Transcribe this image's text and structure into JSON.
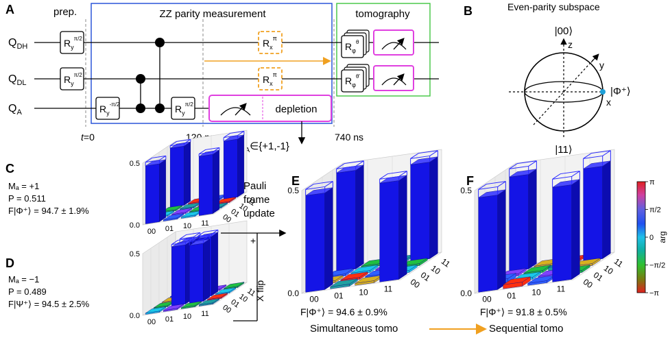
{
  "panel_a": {
    "label": "A",
    "prep": "prep.",
    "zz_title": "ZZ parity measurement",
    "tomo_title": "tomography",
    "qubits": {
      "dh": "Q",
      "dh_sub": "DH",
      "dl": "Q",
      "dl_sub": "DL",
      "a": "Q",
      "a_sub": "A"
    },
    "gates": {
      "ry": "R",
      "ry_sub": "y",
      "pi2": "π/2",
      "mpi2": "-π/2",
      "rx": "R",
      "rx_sub": "x",
      "pi": "π",
      "rphi": "R",
      "rphi_sub": "φ",
      "theta": "θ",
      "thetap": "θ'"
    },
    "depletion": "depletion",
    "t0": "t",
    "t0_rest": "=0",
    "t120": "120 ns",
    "t740": "740 ns",
    "ma": "M",
    "ma_sub": "A",
    "ma_rest": "∈{+1,-1}"
  },
  "panel_b": {
    "label": "B",
    "title": "Even-parity subspace",
    "top": "|00⟩",
    "bottom": "|11⟩",
    "right": "|Φ⁺⟩",
    "z": "z",
    "y": "y",
    "x": "x"
  },
  "panel_c": {
    "label": "C",
    "ma_line": "Mₐ = +1",
    "p_line": "P = 0.511",
    "f_line": "F|Φ⁺⟩ = 94.7 ± 1.9%",
    "ticks_z": [
      "0.5",
      "0.0"
    ],
    "ticks_x": [
      "00",
      "01",
      "10",
      "11"
    ],
    "ticks_y": [
      "00",
      "01",
      "10",
      "11"
    ]
  },
  "panel_d": {
    "label": "D",
    "ma_line": "Mₐ = −1",
    "p_line": "P = 0.489",
    "f_line": "F|Ψ⁺⟩ = 94.5 ± 2.5%",
    "ticks_z": [
      "0.5",
      "0.0"
    ],
    "ticks_x": [
      "00",
      "01",
      "10",
      "11"
    ],
    "ticks_y": [
      "00",
      "01",
      "10",
      "11"
    ]
  },
  "panel_e": {
    "label": "E",
    "ticks_z": [
      "0.5",
      "0.0"
    ],
    "ticks_x": [
      "00",
      "01",
      "10",
      "11"
    ],
    "ticks_y": [
      "00",
      "01",
      "10",
      "11"
    ],
    "fidelity": "F|Φ⁺⟩ = 94.6 ± 0.9%",
    "caption": "Simultaneous tomo"
  },
  "panel_f": {
    "label": "F",
    "ticks_z": [
      "0.5",
      "0.0"
    ],
    "ticks_x": [
      "00",
      "01",
      "10",
      "11"
    ],
    "ticks_y": [
      "00",
      "01",
      "10",
      "11"
    ],
    "fidelity": "F|Φ⁺⟩ = 91.8 ± 0.5%",
    "caption": "Sequential tomo"
  },
  "pauli": {
    "line1": "Pauli",
    "line2": "frame",
    "line3": "update",
    "plus": "+",
    "xflip": "X flip"
  },
  "colorbar": {
    "ticks": [
      "π",
      "π/2",
      "0",
      "−π/2",
      "−π"
    ],
    "label": "arg"
  },
  "colors": {
    "zz_box": "#2a55d8",
    "tomo_box": "#4cc94c",
    "meas": "#e040e0",
    "echo": "#f0a020",
    "bar": "#1414e6",
    "bar_top": "#5a5aff",
    "qubit_point": "#1fa0d8"
  },
  "chart_data": [
    {
      "type": "bar",
      "title": "",
      "panel": "C",
      "row_labels": [
        "00",
        "01",
        "10",
        "11"
      ],
      "col_labels": [
        "00",
        "01",
        "10",
        "11"
      ],
      "matrix_magnitude": [
        [
          0.47,
          0.01,
          0.01,
          0.48
        ],
        [
          0.01,
          0.01,
          0.01,
          0.01
        ],
        [
          0.01,
          0.01,
          0.01,
          0.01
        ],
        [
          0.48,
          0.01,
          0.01,
          0.47
        ]
      ],
      "ideal_magnitude": [
        [
          0.5,
          0,
          0,
          0.5
        ],
        [
          0,
          0,
          0,
          0
        ],
        [
          0,
          0,
          0,
          0
        ],
        [
          0.5,
          0,
          0,
          0.5
        ]
      ],
      "zlim": [
        0,
        0.5
      ]
    },
    {
      "type": "bar",
      "title": "",
      "panel": "D",
      "row_labels": [
        "00",
        "01",
        "10",
        "11"
      ],
      "col_labels": [
        "00",
        "01",
        "10",
        "11"
      ],
      "matrix_magnitude": [
        [
          0.01,
          0.01,
          0.01,
          0.01
        ],
        [
          0.01,
          0.48,
          0.47,
          0.01
        ],
        [
          0.01,
          0.47,
          0.48,
          0.01
        ],
        [
          0.01,
          0.01,
          0.01,
          0.01
        ]
      ],
      "ideal_magnitude": [
        [
          0,
          0,
          0,
          0
        ],
        [
          0,
          0.5,
          0.5,
          0
        ],
        [
          0,
          0.5,
          0.5,
          0
        ],
        [
          0,
          0,
          0,
          0
        ]
      ],
      "zlim": [
        0,
        0.5
      ]
    },
    {
      "type": "bar",
      "title": "",
      "panel": "E",
      "row_labels": [
        "00",
        "01",
        "10",
        "11"
      ],
      "col_labels": [
        "00",
        "01",
        "10",
        "11"
      ],
      "matrix_magnitude": [
        [
          0.47,
          0.01,
          0.01,
          0.48
        ],
        [
          0.01,
          0.01,
          0.01,
          0.01
        ],
        [
          0.01,
          0.01,
          0.01,
          0.01
        ],
        [
          0.48,
          0.01,
          0.01,
          0.47
        ]
      ],
      "ideal_magnitude": [
        [
          0.5,
          0,
          0,
          0.5
        ],
        [
          0,
          0,
          0,
          0
        ],
        [
          0,
          0,
          0,
          0
        ],
        [
          0.5,
          0,
          0,
          0.5
        ]
      ],
      "zlim": [
        0,
        0.5
      ]
    },
    {
      "type": "bar",
      "title": "",
      "panel": "F",
      "row_labels": [
        "00",
        "01",
        "10",
        "11"
      ],
      "col_labels": [
        "00",
        "01",
        "10",
        "11"
      ],
      "matrix_magnitude": [
        [
          0.46,
          0.02,
          0.01,
          0.46
        ],
        [
          0.02,
          0.01,
          0.01,
          0.01
        ],
        [
          0.01,
          0.01,
          0.02,
          0.01
        ],
        [
          0.46,
          0.01,
          0.01,
          0.45
        ]
      ],
      "ideal_magnitude": [
        [
          0.5,
          0,
          0,
          0.5
        ],
        [
          0,
          0,
          0,
          0
        ],
        [
          0,
          0,
          0,
          0
        ],
        [
          0.5,
          0,
          0,
          0.5
        ]
      ],
      "zlim": [
        0,
        0.5
      ]
    }
  ]
}
